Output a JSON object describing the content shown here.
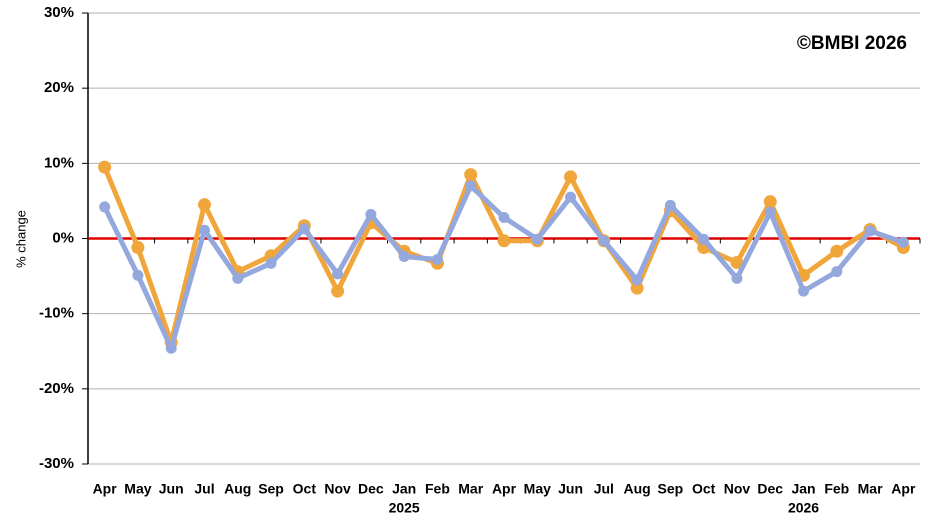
{
  "chart_data": {
    "type": "line",
    "y_label": "% change",
    "annotation": "©BMBI 2026",
    "categories": [
      "Apr",
      "May",
      "Jun",
      "Jul",
      "Aug",
      "Sep",
      "Oct",
      "Nov",
      "Dec",
      "Jan",
      "Feb",
      "Mar",
      "Apr",
      "May",
      "Jun",
      "Jul",
      "Aug",
      "Sep",
      "Oct",
      "Nov",
      "Dec",
      "Jan",
      "Feb",
      "Mar",
      "Apr"
    ],
    "x_groups": [
      {
        "label": "2025",
        "start": 9
      },
      {
        "label": "2026",
        "start": 21
      }
    ],
    "series": [
      {
        "color": "#f0a63a",
        "values": [
          9.5,
          -1.2,
          -13.8,
          4.5,
          -4.4,
          -2.3,
          1.7,
          -7,
          2.1,
          -1.7,
          -3.3,
          8.5,
          -0.3,
          -0.3,
          8.2,
          -0.3,
          -6.6,
          3.7,
          -1.2,
          -3.2,
          4.9,
          -4.9,
          -1.7,
          1.2,
          -1.2
        ]
      },
      {
        "color": "#94a8dd",
        "values": [
          4.2,
          -4.9,
          -14.6,
          1.1,
          -5.3,
          -3.3,
          1.3,
          -4.7,
          3.2,
          -2.4,
          -2.8,
          7,
          2.8,
          -0.1,
          5.5,
          -0.3,
          -5.5,
          4.4,
          -0.1,
          -5.3,
          3.5,
          -7,
          -4.4,
          1,
          -0.5
        ]
      }
    ],
    "ylim": [
      -30,
      30
    ],
    "yticks": [
      {
        "value": -30,
        "label": "-30%"
      },
      {
        "value": -20,
        "label": "-20%"
      },
      {
        "value": -10,
        "label": "-10%"
      },
      {
        "value": 0,
        "label": "0%"
      },
      {
        "value": 10,
        "label": "10%"
      },
      {
        "value": 20,
        "label": "20%"
      },
      {
        "value": 30,
        "label": "30%"
      }
    ],
    "grid": true,
    "zero_line_color": "#e00000"
  }
}
